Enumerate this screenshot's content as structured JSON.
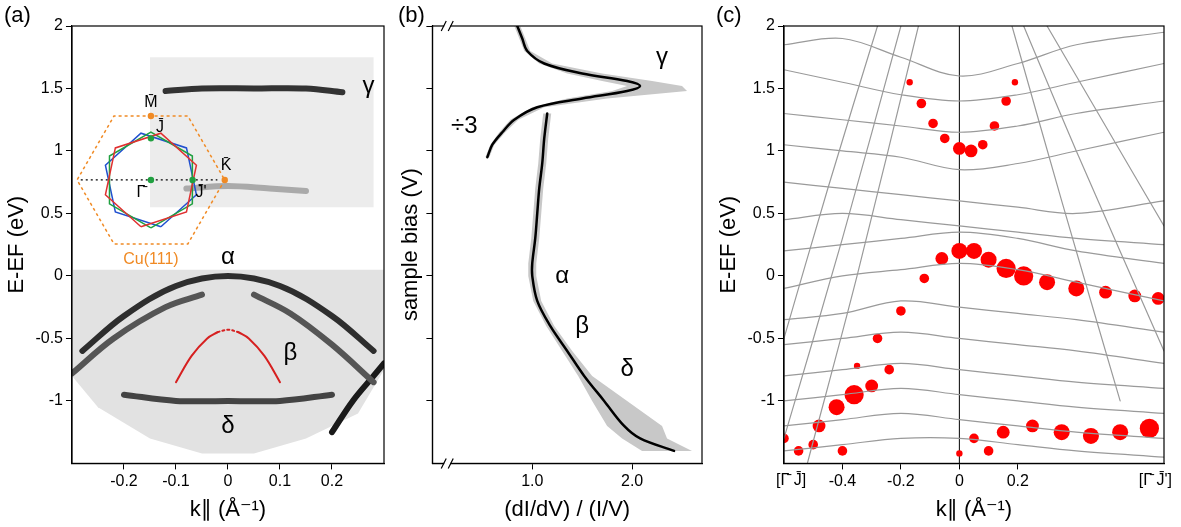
{
  "chart_data": [
    {
      "type": "line",
      "panel": "(a)",
      "xlabel": "k∥ (Å⁻¹)",
      "ylabel": "E-EF (eV)",
      "xlim": [
        -0.3,
        0.3
      ],
      "xticks": [
        -0.2,
        -0.1,
        0,
        0.1,
        0.2
      ],
      "ylim": [
        -1.5,
        2
      ],
      "yticks": [
        -1,
        -0.5,
        0,
        0.5,
        1,
        1.5,
        2
      ],
      "grid": false,
      "series": [
        {
          "type": "area",
          "color": "#ececec",
          "x": [
            -0.15,
            0.28,
            0.28,
            -0.15
          ],
          "y": [
            1.75,
            1.75,
            0.55,
            0.55
          ]
        },
        {
          "type": "area",
          "color": "#e2e2e2",
          "x": [
            -0.3,
            0.3,
            0.3,
            0.25,
            0.15,
            0.05,
            -0.05,
            -0.15,
            -0.25,
            -0.3
          ],
          "y": [
            0.05,
            0.05,
            -0.75,
            -1.1,
            -1.3,
            -1.42,
            -1.42,
            -1.3,
            -1.05,
            -0.8
          ]
        },
        {
          "color": "#333333",
          "x": [
            -0.12,
            -0.05,
            0.05,
            0.15,
            0.22
          ],
          "y": [
            1.48,
            1.5,
            1.5,
            1.5,
            1.47
          ]
        },
        {
          "color": "#aaaaaa",
          "x": [
            -0.08,
            0,
            0.08,
            0.15
          ],
          "y": [
            0.7,
            0.72,
            0.7,
            0.68
          ]
        },
        {
          "color": "#2e2e2e",
          "x": [
            -0.28,
            -0.2,
            -0.1,
            0,
            0.1,
            0.2,
            0.28
          ],
          "y": [
            -0.6,
            -0.32,
            -0.08,
            0,
            -0.08,
            -0.32,
            -0.6
          ]
        },
        {
          "color": "#555555",
          "x": [
            -0.3,
            -0.22,
            -0.12,
            -0.05
          ],
          "y": [
            -0.78,
            -0.5,
            -0.25,
            -0.15
          ]
        },
        {
          "color": "#555555",
          "x": [
            0.05,
            0.12,
            0.2,
            0.28
          ],
          "y": [
            -0.15,
            -0.3,
            -0.55,
            -0.85
          ]
        },
        {
          "color": "#1a1a1a",
          "x": [
            0.2,
            0.24,
            0.28,
            0.3
          ],
          "y": [
            -1.25,
            -1.0,
            -0.8,
            -0.7
          ]
        },
        {
          "color": "#444444",
          "x": [
            -0.2,
            -0.1,
            0,
            0.1,
            0.2
          ],
          "y": [
            -0.95,
            -1.0,
            -1.0,
            -1.0,
            -0.95
          ]
        },
        {
          "color": "#d62020",
          "line_style": "solid",
          "x": [
            -0.1,
            -0.07,
            -0.04,
            -0.02
          ],
          "y": [
            -0.85,
            -0.64,
            -0.5,
            -0.45
          ]
        },
        {
          "color": "#d62020",
          "line_style": "dotted",
          "x": [
            -0.02,
            0,
            0.02
          ],
          "y": [
            -0.45,
            -0.43,
            -0.45
          ]
        },
        {
          "color": "#d62020",
          "line_style": "solid",
          "x": [
            0.02,
            0.04,
            0.07,
            0.1
          ],
          "y": [
            -0.45,
            -0.5,
            -0.64,
            -0.85
          ]
        }
      ],
      "annotations": [
        {
          "text": "α",
          "x": 0,
          "y": 0.15
        },
        {
          "text": "β",
          "x": 0.12,
          "y": -0.62
        },
        {
          "text": "γ",
          "x": 0.27,
          "y": 1.52
        },
        {
          "text": "δ",
          "x": 0,
          "y": -1.2
        }
      ],
      "inset": {
        "labels": [
          "M̄",
          "J̄",
          "K̄",
          "Γ̄",
          "J̄'"
        ],
        "title": "Cu(111)"
      }
    },
    {
      "type": "line",
      "panel": "(b)",
      "xlabel": "(dI/dV) / (I/V)",
      "ylabel": "sample bias (V)",
      "xlim": [
        0,
        2.7
      ],
      "xticks": [
        {
          "value": 1,
          "label": "1.0"
        },
        {
          "value": 2,
          "label": "2.0"
        }
      ],
      "ylim": [
        -1.5,
        2
      ],
      "yticks": [
        -1,
        -0.5,
        0,
        0.5,
        1,
        1.5,
        2
      ],
      "tick_labels": "x",
      "grid": false,
      "series": [
        {
          "color": "#000000",
          "x": [
            1.15,
            1.12,
            1.1,
            1.07,
            1.05,
            1.03,
            1.0,
            1.0,
            1.05,
            1.18,
            1.35,
            1.52,
            1.72,
            1.92,
            2.08,
            2.42
          ],
          "y": [
            1.3,
            1.1,
            0.9,
            0.7,
            0.5,
            0.3,
            0.1,
            0,
            -0.2,
            -0.4,
            -0.6,
            -0.8,
            -1.0,
            -1.2,
            -1.3,
            -1.4
          ],
          "lower": [
            1.11,
            1.08,
            1.06,
            1.03,
            1.01,
            0.99,
            0.96,
            0.96,
            1.01,
            1.14,
            1.3,
            1.46,
            1.6,
            1.75,
            1.9,
            2.1
          ],
          "upper": [
            1.19,
            1.16,
            1.14,
            1.11,
            1.09,
            1.07,
            1.04,
            1.04,
            1.09,
            1.22,
            1.4,
            1.6,
            1.95,
            2.3,
            2.35,
            2.6
          ]
        },
        {
          "color": "#000000",
          "x": [
            0.55,
            0.6,
            0.7,
            0.82,
            1.05,
            1.5,
            1.95,
            2.08,
            1.95,
            1.5,
            1.12,
            0.95,
            0.9,
            0.85
          ],
          "y": [
            0.95,
            1.05,
            1.15,
            1.25,
            1.35,
            1.42,
            1.48,
            1.52,
            1.56,
            1.62,
            1.7,
            1.8,
            1.9,
            2.0
          ],
          "lower": [
            0.53,
            0.58,
            0.67,
            0.78,
            1.0,
            1.35,
            1.8,
            1.95,
            1.7,
            1.35,
            1.07,
            0.92,
            0.87,
            0.82
          ],
          "upper": [
            0.57,
            0.62,
            0.73,
            0.86,
            1.12,
            1.75,
            2.55,
            2.5,
            2.2,
            1.7,
            1.2,
            0.98,
            0.93,
            0.88
          ]
        }
      ],
      "annotations": [
        {
          "text": "÷3",
          "x": 0.32,
          "y": 1.2
        },
        {
          "text": "γ",
          "x": 2.3,
          "y": 1.75
        },
        {
          "text": "α",
          "x": 1.3,
          "y": 0
        },
        {
          "text": "β",
          "x": 1.5,
          "y": -0.4
        },
        {
          "text": "δ",
          "x": 1.95,
          "y": -0.75
        }
      ]
    },
    {
      "type": "line",
      "panel": "(c)",
      "xlabel": "k∥ (Å⁻¹)",
      "ylabel": "E-EF (eV)",
      "xlim": [
        -0.6,
        0.7
      ],
      "xticks": [
        -0.4,
        -0.2,
        0,
        0.2
      ],
      "ylim": [
        -1.5,
        2
      ],
      "yticks": [
        -1,
        -0.5,
        0,
        0.5,
        1,
        1.5,
        2
      ],
      "grid": false,
      "reference_x": 0,
      "direction_labels": [
        "[Γ̄ J̄]",
        "[Γ̄ J̄']"
      ],
      "series": [
        {
          "color": "#9a9a9a",
          "x": [
            -0.6,
            -0.4,
            -0.2,
            0,
            0.2,
            0.4,
            0.7
          ],
          "y": [
            1.85,
            1.9,
            1.75,
            1.6,
            1.7,
            1.85,
            1.95
          ]
        },
        {
          "color": "#9a9a9a",
          "x": [
            -0.6,
            -0.4,
            -0.2,
            0,
            0.2,
            0.4,
            0.7
          ],
          "y": [
            1.65,
            1.55,
            1.45,
            1.4,
            1.45,
            1.55,
            1.7
          ]
        },
        {
          "color": "#9a9a9a",
          "x": [
            -0.6,
            -0.4,
            -0.2,
            0,
            0.2,
            0.4,
            0.7
          ],
          "y": [
            1.3,
            1.25,
            1.2,
            1.15,
            1.2,
            1.3,
            1.4
          ]
        },
        {
          "color": "#9a9a9a",
          "x": [
            -0.6,
            -0.4,
            -0.2,
            0,
            0.2,
            0.4,
            0.7
          ],
          "y": [
            1.05,
            1.0,
            0.95,
            0.85,
            0.9,
            1.0,
            1.15
          ]
        },
        {
          "color": "#9a9a9a",
          "x": [
            -0.6,
            -0.4,
            -0.2,
            0,
            0.2,
            0.4,
            0.7
          ],
          "y": [
            0.75,
            0.7,
            0.65,
            0.6,
            0.55,
            0.5,
            0.6
          ]
        },
        {
          "color": "#9a9a9a",
          "x": [
            -0.6,
            -0.4,
            -0.2,
            0,
            0.2,
            0.4,
            0.7
          ],
          "y": [
            0.45,
            0.5,
            0.45,
            0.4,
            0.35,
            0.3,
            0.25
          ]
        },
        {
          "color": "#9a9a9a",
          "x": [
            -0.6,
            -0.4,
            -0.2,
            0,
            0.2,
            0.4,
            0.7
          ],
          "y": [
            0.2,
            0.25,
            0.3,
            0.35,
            0.3,
            0.2,
            0.1
          ]
        },
        {
          "color": "#9a9a9a",
          "x": [
            -0.6,
            -0.4,
            -0.2,
            0,
            0.2,
            0.4,
            0.7
          ],
          "y": [
            -0.1,
            0,
            0.05,
            0.1,
            0.05,
            -0.05,
            -0.2
          ]
        },
        {
          "color": "#9a9a9a",
          "x": [
            -0.6,
            -0.4,
            -0.2,
            0,
            0.2,
            0.4,
            0.7
          ],
          "y": [
            -0.35,
            -0.3,
            -0.2,
            -0.25,
            -0.3,
            -0.35,
            -0.45
          ]
        },
        {
          "color": "#9a9a9a",
          "x": [
            -0.6,
            -0.4,
            -0.2,
            0,
            0.2,
            0.4,
            0.7
          ],
          "y": [
            -0.55,
            -0.5,
            -0.45,
            -0.5,
            -0.55,
            -0.6,
            -0.7
          ]
        },
        {
          "color": "#9a9a9a",
          "x": [
            -0.6,
            -0.4,
            -0.2,
            0,
            0.2,
            0.4,
            0.7
          ],
          "y": [
            -0.8,
            -0.75,
            -0.7,
            -0.75,
            -0.8,
            -0.85,
            -0.9
          ]
        },
        {
          "color": "#9a9a9a",
          "x": [
            -0.6,
            -0.4,
            -0.2,
            0,
            0.2,
            0.4,
            0.7
          ],
          "y": [
            -1.0,
            -0.95,
            -0.9,
            -0.95,
            -1.0,
            -1.05,
            -1.1
          ]
        },
        {
          "color": "#9a9a9a",
          "x": [
            -0.6,
            -0.4,
            -0.2,
            0,
            0.2,
            0.4,
            0.7
          ],
          "y": [
            -1.2,
            -1.15,
            -1.1,
            -1.15,
            -1.2,
            -1.25,
            -1.3
          ]
        },
        {
          "color": "#9a9a9a",
          "x": [
            -0.6,
            -0.4,
            -0.2,
            0,
            0.2,
            0.4,
            0.7
          ],
          "y": [
            -1.4,
            -1.35,
            -1.3,
            -1.3,
            -1.35,
            -1.4,
            -1.45
          ]
        },
        {
          "color": "#9a9a9a",
          "x": [
            -0.6,
            -0.4,
            -0.2
          ],
          "y": [
            -1.3,
            0.3,
            2
          ]
        },
        {
          "color": "#9a9a9a",
          "x": [
            -0.6,
            -0.45,
            -0.28
          ],
          "y": [
            -0.5,
            0.7,
            2
          ]
        },
        {
          "color": "#9a9a9a",
          "x": [
            -0.52,
            -0.35,
            -0.14
          ],
          "y": [
            -1.5,
            0,
            2
          ]
        },
        {
          "color": "#9a9a9a",
          "x": [
            0.18,
            0.35,
            0.55
          ],
          "y": [
            2,
            0.6,
            -1.0
          ]
        },
        {
          "color": "#9a9a9a",
          "x": [
            0.22,
            0.4,
            0.7
          ],
          "y": [
            2,
            1.0,
            -0.6
          ]
        },
        {
          "color": "#9a9a9a",
          "x": [
            0.3,
            0.5,
            0.7
          ],
          "y": [
            2,
            1.2,
            0.4
          ]
        },
        {
          "type": "bubble",
          "color": "#ff0000",
          "x": [
            -0.17,
            -0.13,
            -0.09,
            -0.05,
            0,
            0.04,
            0.08,
            0.12,
            0.16,
            0.19,
            -0.35,
            -0.28,
            -0.2,
            -0.12,
            -0.06,
            0,
            0.05,
            0.1,
            0.16,
            0.22,
            0.3,
            0.4,
            0.5,
            0.6,
            0.68,
            -0.55,
            -0.48,
            -0.42,
            -0.36,
            -0.3,
            -0.24,
            -0.6,
            -0.5,
            -0.4,
            0,
            0.1,
            0.05,
            0.15,
            0.25,
            0.35,
            0.45,
            0.55,
            0.65
          ],
          "y": [
            1.55,
            1.38,
            1.22,
            1.1,
            1.02,
            1.0,
            1.05,
            1.2,
            1.4,
            1.55,
            -0.72,
            -0.5,
            -0.28,
            -0.02,
            0.14,
            0.2,
            0.2,
            0.13,
            0.06,
            0,
            -0.05,
            -0.1,
            -0.13,
            -0.16,
            -0.18,
            -1.4,
            -1.2,
            -1.05,
            -0.95,
            -0.88,
            -0.75,
            -1.3,
            -1.35,
            -1.4,
            -1.42,
            -1.4,
            -1.3,
            -1.25,
            -1.2,
            -1.25,
            -1.28,
            -1.25,
            -1.22
          ],
          "size": [
            2,
            3,
            3,
            3,
            4,
            4,
            3,
            3,
            3,
            2,
            2,
            3,
            3,
            3,
            4,
            5,
            5,
            5,
            6,
            6,
            5,
            5,
            4,
            4,
            4,
            3,
            4,
            5,
            6,
            4,
            3,
            3,
            3,
            3,
            2,
            3,
            3,
            4,
            4,
            5,
            5,
            5,
            6
          ]
        }
      ]
    }
  ]
}
